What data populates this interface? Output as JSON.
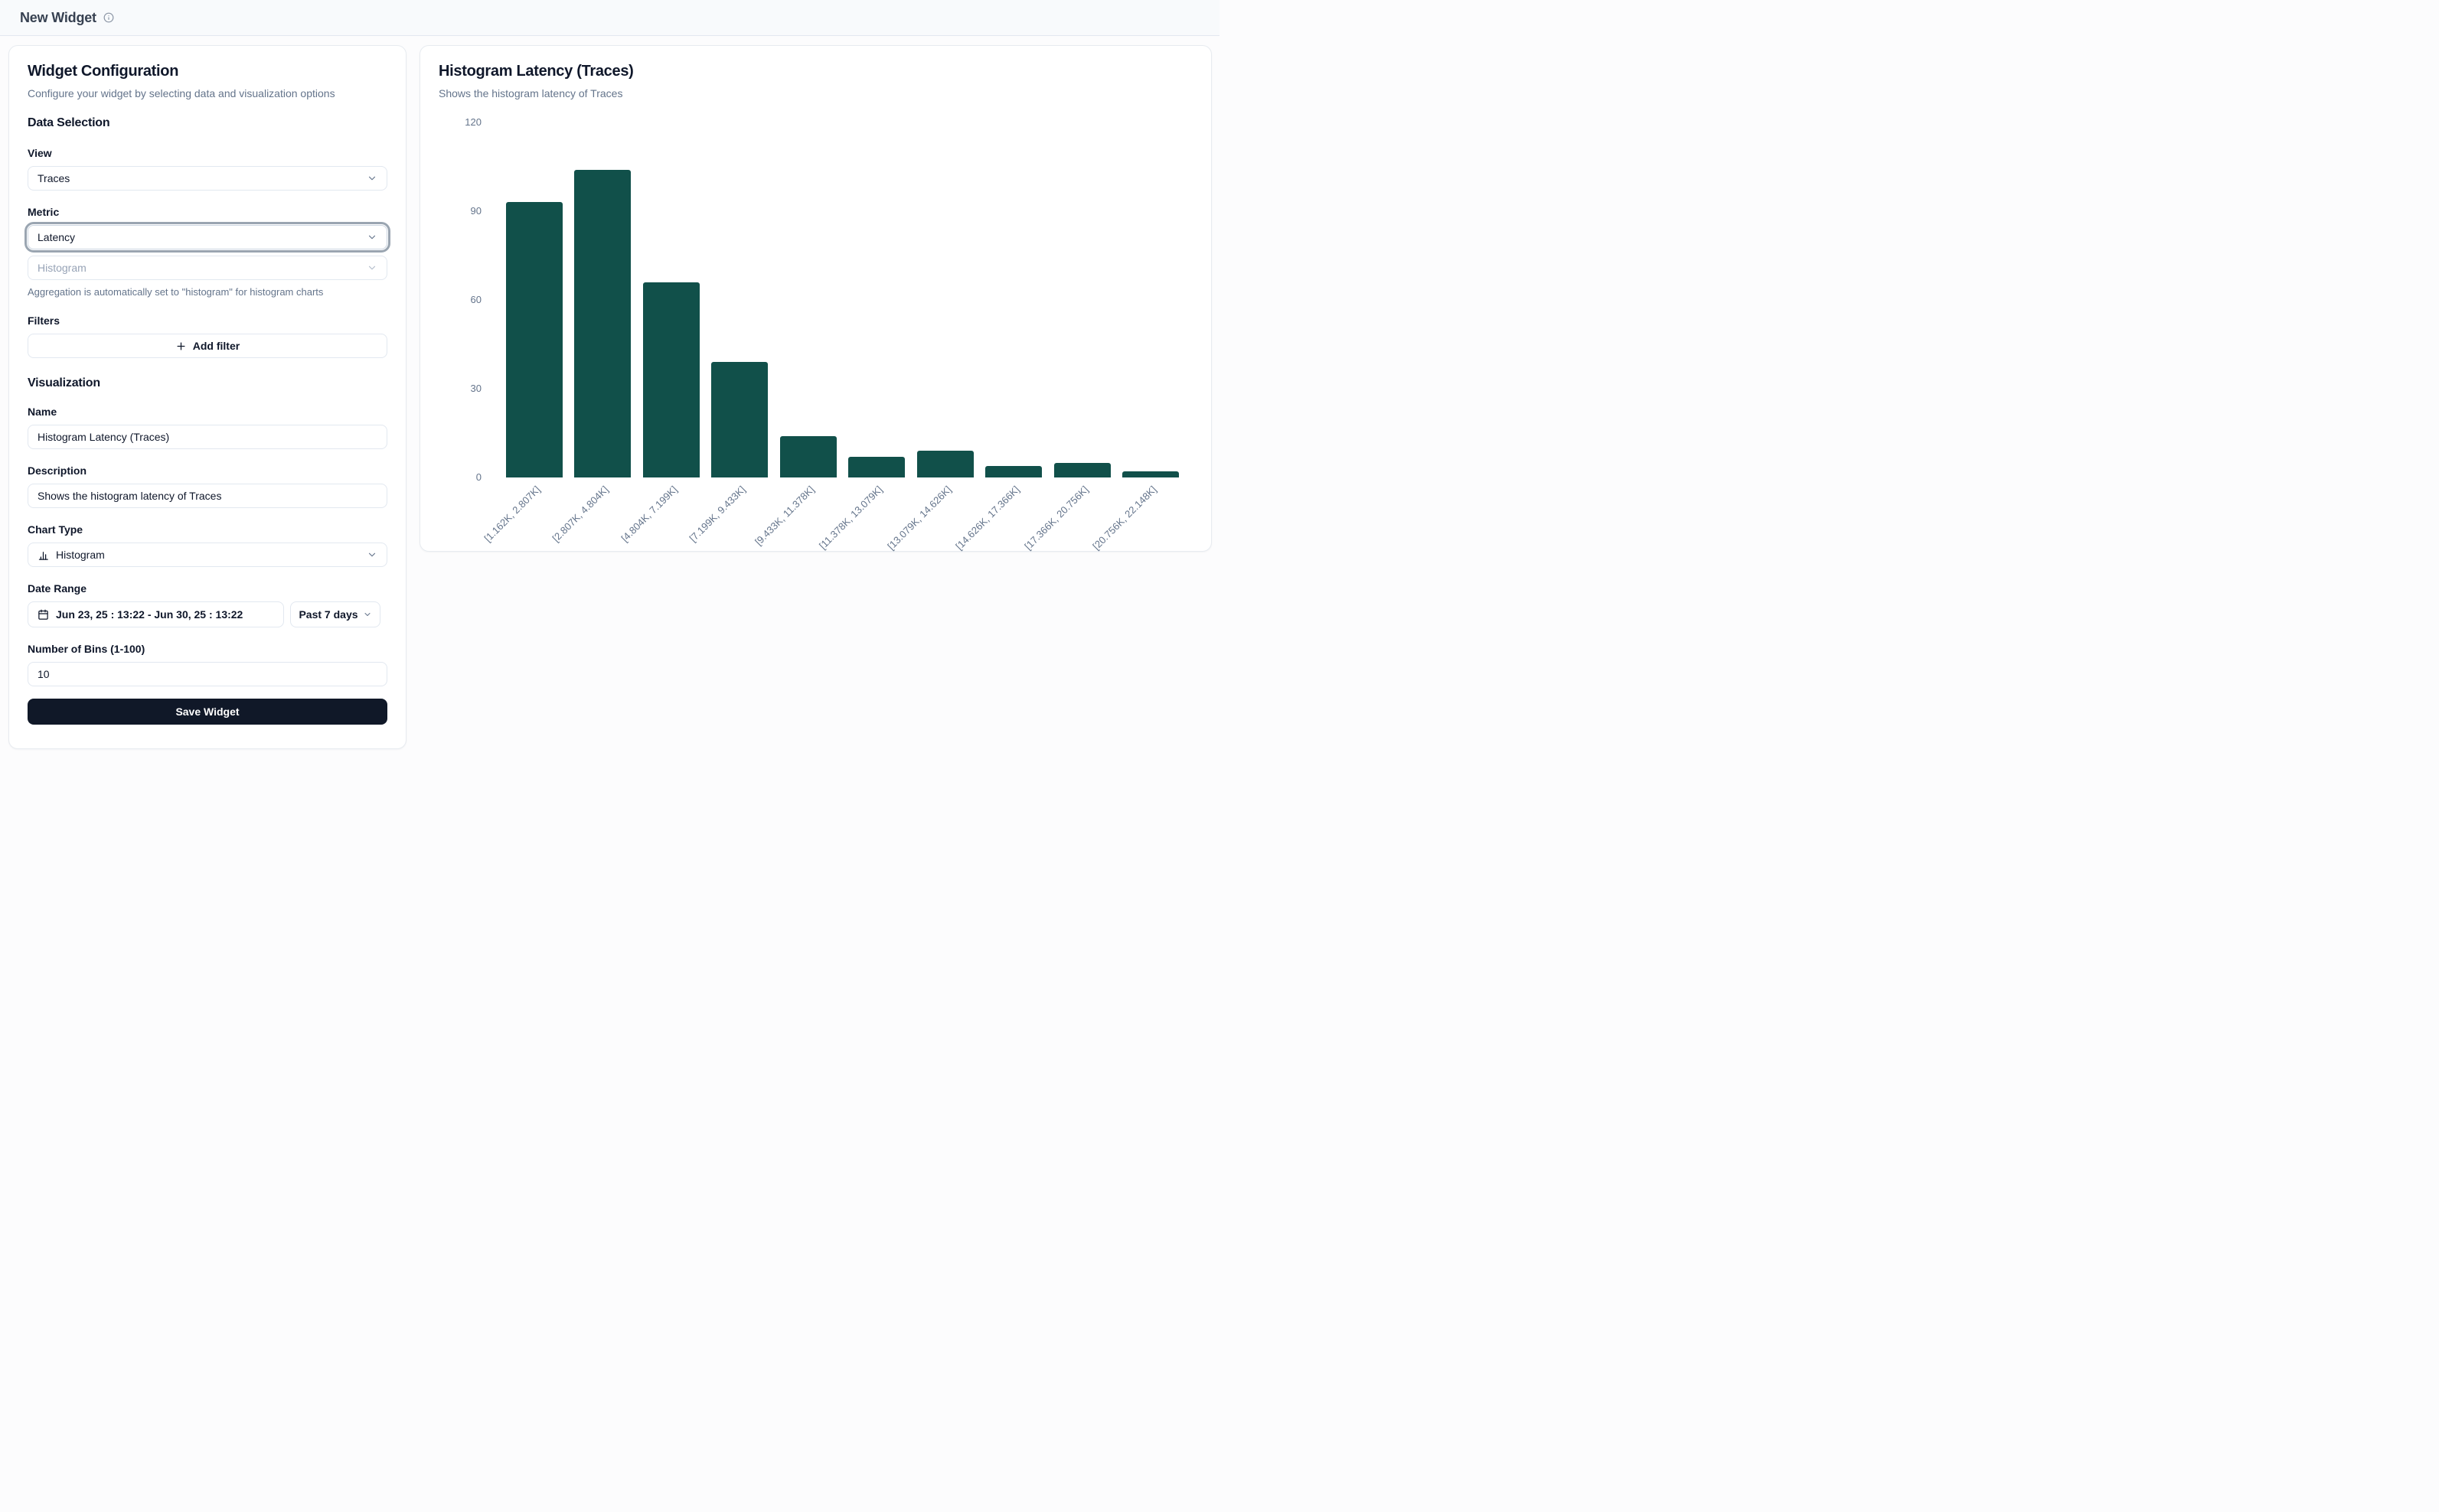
{
  "header": {
    "title": "New Widget"
  },
  "config_panel": {
    "title": "Widget Configuration",
    "subtitle": "Configure your widget by selecting data and visualization options",
    "data_selection": {
      "heading": "Data Selection",
      "view_label": "View",
      "view_value": "Traces",
      "metric_label": "Metric",
      "metric_value": "Latency",
      "aggregation_value": "Histogram",
      "aggregation_help": "Aggregation is automatically set to \"histogram\" for histogram charts",
      "filters_label": "Filters",
      "add_filter_label": "Add filter"
    },
    "visualization": {
      "heading": "Visualization",
      "name_label": "Name",
      "name_value": "Histogram Latency (Traces)",
      "description_label": "Description",
      "description_value": "Shows the histogram latency of Traces",
      "chart_type_label": "Chart Type",
      "chart_type_value": "Histogram",
      "date_range_label": "Date Range",
      "date_range_value": "Jun 23, 25 : 13:22 - Jun 30, 25 : 13:22",
      "date_preset_value": "Past 7 days",
      "bins_label": "Number of Bins (1-100)",
      "bins_value": "10",
      "save_label": "Save Widget"
    }
  },
  "preview_panel": {
    "title": "Histogram Latency (Traces)",
    "subtitle": "Shows the histogram latency of Traces"
  },
  "chart_data": {
    "type": "bar",
    "title": "Histogram Latency (Traces)",
    "categories": [
      "[1.162K, 2.807K]",
      "[2.807K, 4.804K]",
      "[4.804K, 7.199K]",
      "[7.199K, 9.433K]",
      "[9.433K, 11.378K]",
      "[11.378K, 13.079K]",
      "[13.079K, 14.626K]",
      "[14.626K, 17.366K]",
      "[17.366K, 20.756K]",
      "[20.756K, 22.148K]"
    ],
    "values": [
      93,
      104,
      66,
      39,
      14,
      7,
      9,
      4,
      5,
      2
    ],
    "xlabel": "",
    "ylabel": "",
    "ylim": [
      0,
      120
    ],
    "yticks": [
      0,
      30,
      60,
      90,
      120
    ],
    "bar_color": "#11504a",
    "grid": false,
    "legend": false,
    "x_label_rotation": -45
  },
  "icons": {
    "info": "info-icon",
    "chevron": "chevron-down-icon",
    "plus": "plus-icon",
    "chart_type": "histogram-chart-icon",
    "calendar": "calendar-icon"
  },
  "colors": {
    "bar": "#11504a",
    "primary_text": "#0f172a",
    "muted_text": "#64748b",
    "border": "#e2e8f0",
    "save_button_bg": "#101828",
    "header_bg": "#f8fafc",
    "card_bg": "#ffffff"
  }
}
